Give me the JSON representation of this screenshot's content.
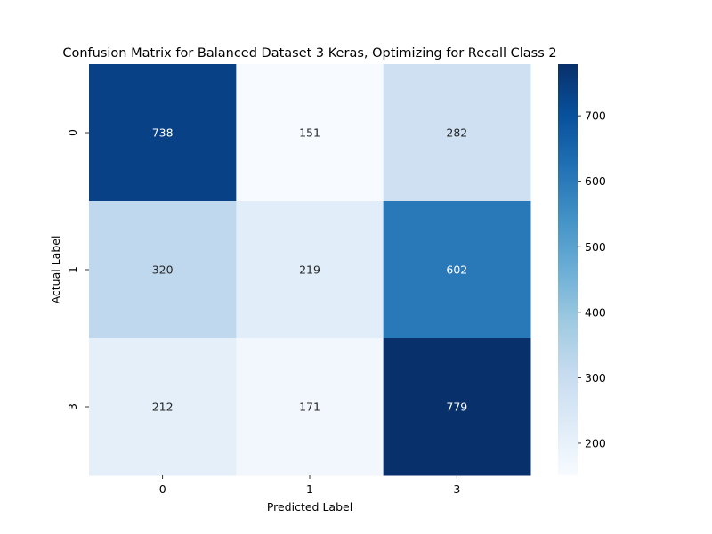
{
  "chart_data": {
    "type": "heatmap",
    "title": "Confusion Matrix for Balanced Dataset 3 Keras, Optimizing for Recall Class 2",
    "xlabel": "Predicted Label",
    "ylabel": "Actual Label",
    "x_categories": [
      "0",
      "1",
      "3"
    ],
    "y_categories": [
      "0",
      "1",
      "3"
    ],
    "values": [
      [
        738,
        151,
        282
      ],
      [
        320,
        219,
        602
      ],
      [
        212,
        171,
        779
      ]
    ],
    "colormap": "Blues",
    "colorbar": {
      "min": 151,
      "max": 779,
      "ticks": [
        200,
        300,
        400,
        500,
        600,
        700
      ]
    }
  }
}
